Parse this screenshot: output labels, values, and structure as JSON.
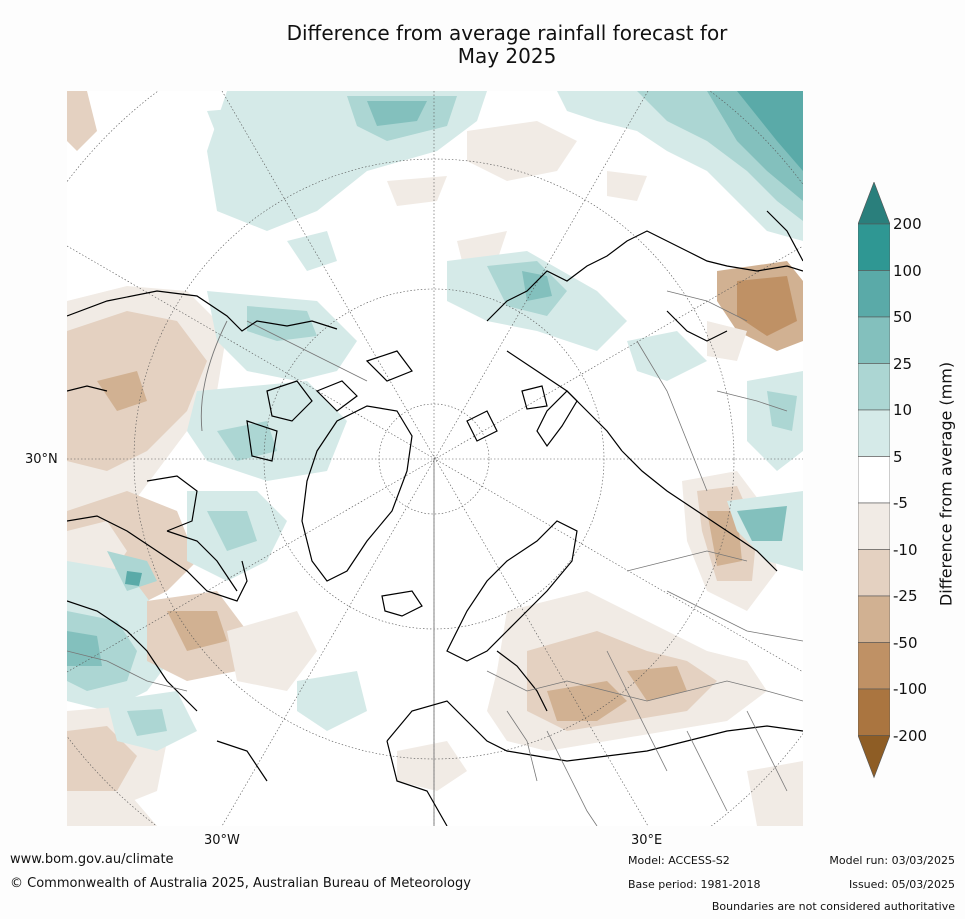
{
  "title_line1": "Difference from average rainfall forecast for",
  "title_line2": "May 2025",
  "axis_labels": {
    "lat_30n": "30°N",
    "lon_30w": "30°W",
    "lon_30e": "30°E"
  },
  "colorbar": {
    "title": "Difference from average (mm)",
    "ticks": [
      "200",
      "100",
      "50",
      "25",
      "10",
      "5",
      "-5",
      "-10",
      "-25",
      "-50",
      "-100",
      "-200"
    ],
    "colors": {
      "gt200": "#2a7f7c",
      "100_200": "#2f9793",
      "50_100": "#5aaaa8",
      "25_50": "#83c0bd",
      "10_25": "#acd6d3",
      "5_10": "#d5eae8",
      "m5_5": "#ffffff",
      "m10_m5": "#f1ebe5",
      "m25_m10": "#e4d1c1",
      "m50_m25": "#d1b192",
      "m100_m50": "#bf9165",
      "m200_m100": "#aa7540",
      "lt_m200": "#8e5d25"
    }
  },
  "footer": {
    "website": "www.bom.gov.au/climate",
    "copyright": "© Commonwealth of Australia 2025, Australian Bureau of Meteorology",
    "model": "Model: ACCESS-S2",
    "base_period": "Base period: 1981-2018",
    "model_run": "Model run: 03/03/2025",
    "issued": "Issued: 05/03/2025",
    "disclaimer": "Boundaries are not considered authoritative"
  }
}
